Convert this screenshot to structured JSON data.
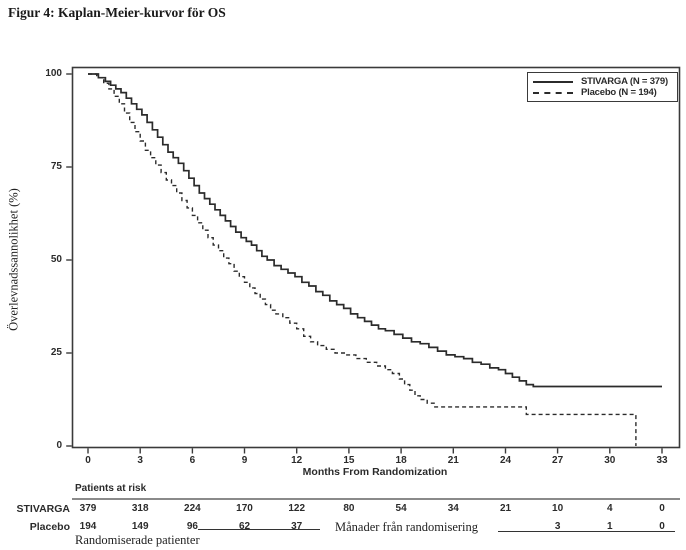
{
  "figure": {
    "title": "Figur 4: Kaplan-Meier-kurvor för OS"
  },
  "chart_data": {
    "type": "line",
    "subtype": "kaplan-meier-step",
    "xlabel": "Months From Randomization",
    "ylabel": "Överlevnadssannolikhet (%)",
    "xlim": [
      0,
      33
    ],
    "ylim": [
      0,
      100
    ],
    "x_ticks": [
      0,
      3,
      6,
      9,
      12,
      15,
      18,
      21,
      24,
      27,
      30,
      33
    ],
    "y_ticks": [
      0,
      25,
      50,
      75,
      100
    ],
    "grid": false,
    "legend_position": "top-right",
    "frame_color": "#3a3a3a",
    "curve_color": "#2b2b2b",
    "series": [
      {
        "name": "STIVARGA (N = 379)",
        "line_style": "solid",
        "color": "#2b2b2b",
        "points": [
          [
            0,
            100
          ],
          [
            0.6,
            99
          ],
          [
            1.0,
            98
          ],
          [
            1.3,
            97
          ],
          [
            1.6,
            96
          ],
          [
            1.9,
            95
          ],
          [
            2.2,
            93.5
          ],
          [
            2.5,
            92
          ],
          [
            2.8,
            90.5
          ],
          [
            3.1,
            89
          ],
          [
            3.4,
            87
          ],
          [
            3.7,
            85
          ],
          [
            4.0,
            83
          ],
          [
            4.3,
            81
          ],
          [
            4.6,
            79
          ],
          [
            4.9,
            77.5
          ],
          [
            5.2,
            76
          ],
          [
            5.5,
            74
          ],
          [
            5.8,
            72
          ],
          [
            6.1,
            70
          ],
          [
            6.4,
            68
          ],
          [
            6.7,
            66.5
          ],
          [
            7.0,
            65
          ],
          [
            7.3,
            63.5
          ],
          [
            7.6,
            62
          ],
          [
            7.9,
            60.5
          ],
          [
            8.2,
            59
          ],
          [
            8.5,
            57.5
          ],
          [
            8.8,
            56
          ],
          [
            9.1,
            55
          ],
          [
            9.4,
            54
          ],
          [
            9.7,
            52.5
          ],
          [
            10.0,
            51
          ],
          [
            10.3,
            50
          ],
          [
            10.7,
            48.5
          ],
          [
            11.1,
            47.5
          ],
          [
            11.5,
            46.5
          ],
          [
            11.9,
            45.5
          ],
          [
            12.3,
            44
          ],
          [
            12.7,
            43
          ],
          [
            13.1,
            41.5
          ],
          [
            13.5,
            40.5
          ],
          [
            13.9,
            39
          ],
          [
            14.3,
            38
          ],
          [
            14.7,
            37
          ],
          [
            15.1,
            35.5
          ],
          [
            15.5,
            34.5
          ],
          [
            15.9,
            33.5
          ],
          [
            16.3,
            32.5
          ],
          [
            16.7,
            31.5
          ],
          [
            17.1,
            31
          ],
          [
            17.6,
            30
          ],
          [
            18.1,
            29
          ],
          [
            18.6,
            28
          ],
          [
            19.1,
            27.5
          ],
          [
            19.6,
            26.5
          ],
          [
            20.1,
            25.5
          ],
          [
            20.6,
            24.5
          ],
          [
            21.1,
            24
          ],
          [
            21.6,
            23.5
          ],
          [
            22.1,
            22.5
          ],
          [
            22.6,
            22
          ],
          [
            23.1,
            21
          ],
          [
            23.6,
            20.5
          ],
          [
            24.0,
            19.5
          ],
          [
            24.4,
            18.5
          ],
          [
            24.8,
            17.5
          ],
          [
            25.2,
            16.5
          ],
          [
            25.6,
            16
          ],
          [
            33,
            16
          ]
        ]
      },
      {
        "name": "Placebo (N = 194)",
        "line_style": "dashed",
        "color": "#2b2b2b",
        "points": [
          [
            0,
            100
          ],
          [
            0.5,
            99
          ],
          [
            0.9,
            97.5
          ],
          [
            1.2,
            96
          ],
          [
            1.5,
            94
          ],
          [
            1.8,
            92
          ],
          [
            2.1,
            89.5
          ],
          [
            2.4,
            87
          ],
          [
            2.7,
            84.5
          ],
          [
            3.0,
            82
          ],
          [
            3.3,
            79.5
          ],
          [
            3.6,
            77.5
          ],
          [
            3.9,
            75.5
          ],
          [
            4.2,
            73.5
          ],
          [
            4.5,
            71.5
          ],
          [
            4.8,
            70
          ],
          [
            5.1,
            68
          ],
          [
            5.4,
            66
          ],
          [
            5.7,
            64
          ],
          [
            6.0,
            62
          ],
          [
            6.3,
            60
          ],
          [
            6.6,
            58
          ],
          [
            6.9,
            56
          ],
          [
            7.2,
            54
          ],
          [
            7.5,
            52.5
          ],
          [
            7.8,
            50.5
          ],
          [
            8.1,
            49
          ],
          [
            8.4,
            47
          ],
          [
            8.7,
            45.5
          ],
          [
            9.0,
            44
          ],
          [
            9.3,
            42.5
          ],
          [
            9.6,
            41
          ],
          [
            9.9,
            39.5
          ],
          [
            10.2,
            38
          ],
          [
            10.5,
            36.5
          ],
          [
            10.8,
            35.5
          ],
          [
            11.2,
            34.5
          ],
          [
            11.6,
            33
          ],
          [
            12.0,
            31.5
          ],
          [
            12.4,
            29.5
          ],
          [
            12.8,
            28
          ],
          [
            13.2,
            27
          ],
          [
            13.7,
            26
          ],
          [
            14.2,
            25
          ],
          [
            14.8,
            24.5
          ],
          [
            15.4,
            23.5
          ],
          [
            16.0,
            22.5
          ],
          [
            16.6,
            21.5
          ],
          [
            17.1,
            20.5
          ],
          [
            17.5,
            19.5
          ],
          [
            17.9,
            18
          ],
          [
            18.2,
            16.5
          ],
          [
            18.5,
            15
          ],
          [
            18.8,
            13.5
          ],
          [
            19.1,
            12.5
          ],
          [
            19.5,
            11.5
          ],
          [
            19.9,
            10.5
          ],
          [
            25.2,
            8.5
          ],
          [
            31.5,
            0
          ]
        ]
      }
    ]
  },
  "at_risk": {
    "header": "Patients at risk",
    "months": [
      0,
      3,
      6,
      9,
      12,
      15,
      18,
      21,
      24,
      27,
      30,
      33
    ],
    "rows": [
      {
        "label": "STIVARGA",
        "values": [
          "379",
          "318",
          "224",
          "170",
          "122",
          "80",
          "54",
          "34",
          "21",
          "10",
          "4",
          "0"
        ]
      },
      {
        "label": "Placebo",
        "values": [
          "194",
          "149",
          "96",
          "62",
          "37",
          "",
          "",
          "",
          "",
          "3",
          "1",
          "0"
        ]
      }
    ],
    "overlay_text": "Månader från randomisering",
    "footnote": "Randomiserade patienter"
  }
}
